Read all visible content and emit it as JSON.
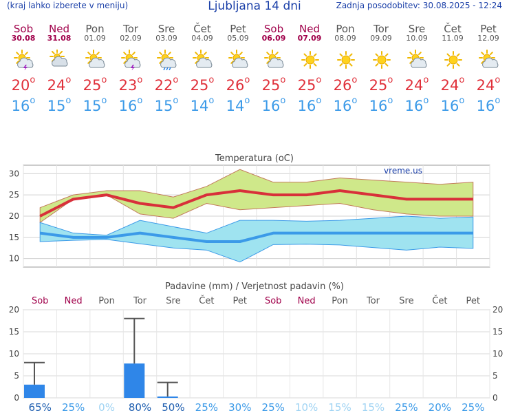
{
  "header": {
    "menu_hint": "(kraj lahko izberete v meniju)",
    "title": "Ljubljana 14 dni",
    "updated": "Zadnja posodobitev: 30.08.2025 - 12:24"
  },
  "days": [
    {
      "name": "Sob",
      "date": "30.08",
      "weekend": true,
      "icon": "sun-cloud-thunder-icon",
      "tmax": "20",
      "tmin": "16"
    },
    {
      "name": "Ned",
      "date": "31.08",
      "weekend": true,
      "icon": "cloudy-icon",
      "tmax": "24",
      "tmin": "15"
    },
    {
      "name": "Pon",
      "date": "01.09",
      "weekend": false,
      "icon": "sun-cloud-icon",
      "tmax": "25",
      "tmin": "15"
    },
    {
      "name": "Tor",
      "date": "02.09",
      "weekend": false,
      "icon": "sun-cloud-thunder-icon",
      "tmax": "23",
      "tmin": "16"
    },
    {
      "name": "Sre",
      "date": "03.09",
      "weekend": false,
      "icon": "sun-cloud-rain-icon",
      "tmax": "22",
      "tmin": "15"
    },
    {
      "name": "Čet",
      "date": "04.09",
      "weekend": false,
      "icon": "sun-cloud-icon",
      "tmax": "25",
      "tmin": "14"
    },
    {
      "name": "Pet",
      "date": "05.09",
      "weekend": false,
      "icon": "sun-cloud-icon",
      "tmax": "26",
      "tmin": "14"
    },
    {
      "name": "Sob",
      "date": "06.09",
      "weekend": true,
      "icon": "sun-cloud-icon",
      "tmax": "25",
      "tmin": "16"
    },
    {
      "name": "Ned",
      "date": "07.09",
      "weekend": true,
      "icon": "sun-icon",
      "tmax": "25",
      "tmin": "16"
    },
    {
      "name": "Pon",
      "date": "08.09",
      "weekend": false,
      "icon": "sun-icon",
      "tmax": "26",
      "tmin": "16"
    },
    {
      "name": "Tor",
      "date": "09.09",
      "weekend": false,
      "icon": "sun-icon",
      "tmax": "25",
      "tmin": "16"
    },
    {
      "name": "Sre",
      "date": "10.09",
      "weekend": false,
      "icon": "sun-cloud-icon",
      "tmax": "24",
      "tmin": "16"
    },
    {
      "name": "Čet",
      "date": "11.09",
      "weekend": false,
      "icon": "sun-icon",
      "tmax": "24",
      "tmin": "16"
    },
    {
      "name": "Pet",
      "date": "12.09",
      "weekend": false,
      "icon": "sun-cloud-icon",
      "tmax": "24",
      "tmin": "16"
    }
  ],
  "colors": {
    "weekend": "#a0004a",
    "tmax": "#e0303a",
    "tmin": "#3b9ae8",
    "header": "#1a3fa8",
    "max_band": "#cfe88a",
    "min_band": "#9fe3f0",
    "precip_bar": "#2f86e8"
  },
  "chart_data": [
    {
      "type": "line",
      "title": "Temperatura (oC)",
      "watermark": "vreme.us",
      "x": [
        "Sob",
        "Ned",
        "Pon",
        "Tor",
        "Sre",
        "Čet",
        "Pet",
        "Sob",
        "Ned",
        "Pon",
        "Tor",
        "Sre",
        "Čet",
        "Pet"
      ],
      "ylim": [
        8,
        32
      ],
      "yticks": [
        10,
        15,
        20,
        25,
        30
      ],
      "grid": true,
      "series": [
        {
          "role": "max_mean",
          "values": [
            20,
            24,
            25,
            23,
            22,
            25,
            26,
            25,
            25,
            26,
            25,
            24,
            24,
            24
          ]
        },
        {
          "role": "max_upper",
          "values": [
            22,
            25,
            26,
            26,
            24.5,
            27,
            31,
            28,
            28,
            29,
            28.5,
            28,
            27.5,
            28
          ]
        },
        {
          "role": "max_lower",
          "values": [
            18.5,
            24,
            25,
            20.5,
            19.5,
            23,
            21.5,
            22,
            22.5,
            23,
            21.5,
            20.5,
            20,
            20
          ]
        },
        {
          "role": "min_mean",
          "values": [
            16,
            15,
            15,
            16,
            15,
            14,
            14,
            16,
            16,
            16,
            16,
            16,
            16,
            16
          ]
        },
        {
          "role": "min_upper",
          "values": [
            18.5,
            16,
            15.5,
            19,
            17.5,
            16,
            19,
            19,
            18.8,
            19,
            19.5,
            20,
            19.5,
            19.8
          ]
        },
        {
          "role": "min_lower",
          "values": [
            14,
            14.3,
            14.5,
            13.5,
            12.5,
            12,
            9.2,
            13.3,
            13.4,
            13.2,
            12.6,
            12,
            12.7,
            12.4
          ]
        }
      ]
    },
    {
      "type": "bar",
      "title": "Padavine (mm) / Verjetnost padavin (%)",
      "x": [
        "Sob",
        "Ned",
        "Pon",
        "Tor",
        "Sre",
        "Čet",
        "Pet",
        "Sob",
        "Ned",
        "Pon",
        "Tor",
        "Sre",
        "Čet",
        "Pet"
      ],
      "ylim": [
        0,
        20
      ],
      "yticks": [
        0,
        5,
        10,
        15,
        20
      ],
      "values": [
        3,
        0,
        0,
        7.8,
        0.3,
        0,
        0,
        0,
        0,
        0,
        0,
        0,
        0,
        0
      ],
      "error_upper": [
        8,
        0,
        0,
        18,
        3.5,
        0,
        0,
        0,
        0,
        0,
        0,
        0,
        0,
        0
      ],
      "probability": [
        "65%",
        "25%",
        "0%",
        "80%",
        "50%",
        "25%",
        "30%",
        "25%",
        "10%",
        "15%",
        "15%",
        "25%",
        "20%",
        "25%"
      ],
      "probability_shade": [
        "dark",
        "mid",
        "light",
        "dark",
        "dark",
        "mid",
        "mid",
        "mid",
        "light",
        "light",
        "light",
        "mid",
        "mid",
        "mid"
      ]
    }
  ]
}
